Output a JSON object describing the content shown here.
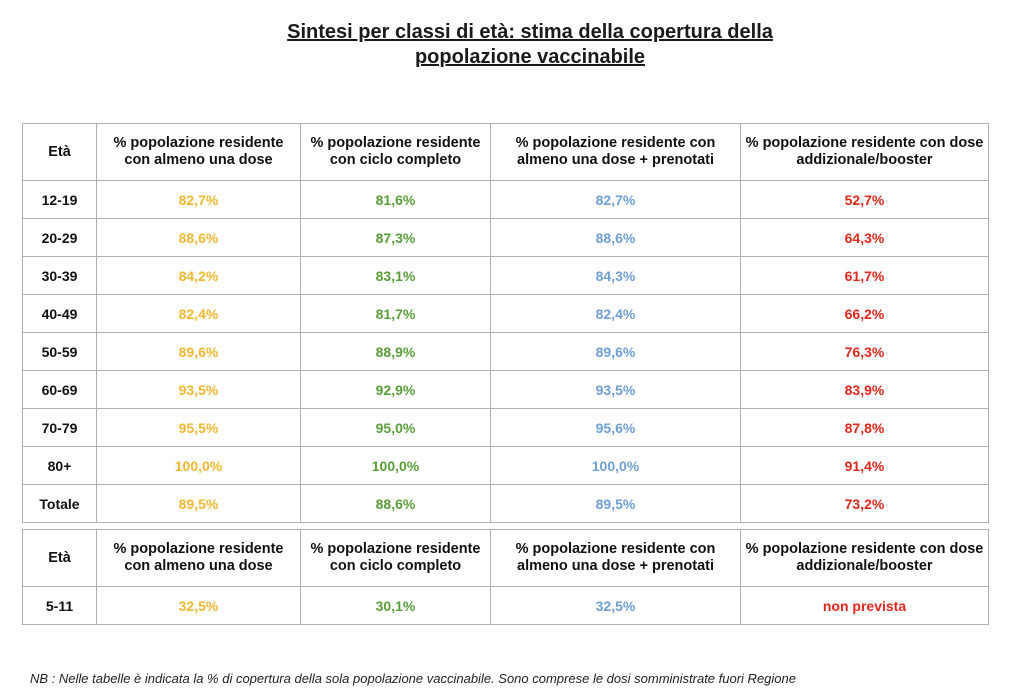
{
  "title_line1": "Sintesi per classi di età: stima della copertura della",
  "title_line2": "popolazione vaccinabile",
  "headers": {
    "age": "Età",
    "col1": "% popolazione residente con almeno una dose",
    "col2": "% popolazione residente con ciclo completo",
    "col3": "% popolazione residente con almeno una dose + prenotati",
    "col4": "% popolazione residente con dose addizionale/booster"
  },
  "colors": {
    "col1": "#f2b830",
    "col2": "#5a9e3a",
    "col3": "#6f9fd6",
    "col4": "#e0281c"
  },
  "rows": [
    {
      "age": "12-19",
      "v1": "82,7%",
      "v2": "81,6%",
      "v3": "82,7%",
      "v4": "52,7%"
    },
    {
      "age": "20-29",
      "v1": "88,6%",
      "v2": "87,3%",
      "v3": "88,6%",
      "v4": "64,3%"
    },
    {
      "age": "30-39",
      "v1": "84,2%",
      "v2": "83,1%",
      "v3": "84,3%",
      "v4": "61,7%"
    },
    {
      "age": "40-49",
      "v1": "82,4%",
      "v2": "81,7%",
      "v3": "82,4%",
      "v4": "66,2%"
    },
    {
      "age": "50-59",
      "v1": "89,6%",
      "v2": "88,9%",
      "v3": "89,6%",
      "v4": "76,3%"
    },
    {
      "age": "60-69",
      "v1": "93,5%",
      "v2": "92,9%",
      "v3": "93,5%",
      "v4": "83,9%"
    },
    {
      "age": "70-79",
      "v1": "95,5%",
      "v2": "95,0%",
      "v3": "95,6%",
      "v4": "87,8%"
    },
    {
      "age": "80+",
      "v1": "100,0%",
      "v2": "100,0%",
      "v3": "100,0%",
      "v4": "91,4%"
    },
    {
      "age": "Totale",
      "v1": "89,5%",
      "v2": "88,6%",
      "v3": "89,5%",
      "v4": "73,2%"
    }
  ],
  "young_rows": [
    {
      "age": "5-11",
      "v1": "32,5%",
      "v2": "30,1%",
      "v3": "32,5%",
      "v4": "non prevista"
    }
  ],
  "note": "NB : Nelle tabelle è indicata la % di copertura della sola popolazione vaccinabile. Sono comprese le dosi somministrate fuori Regione"
}
